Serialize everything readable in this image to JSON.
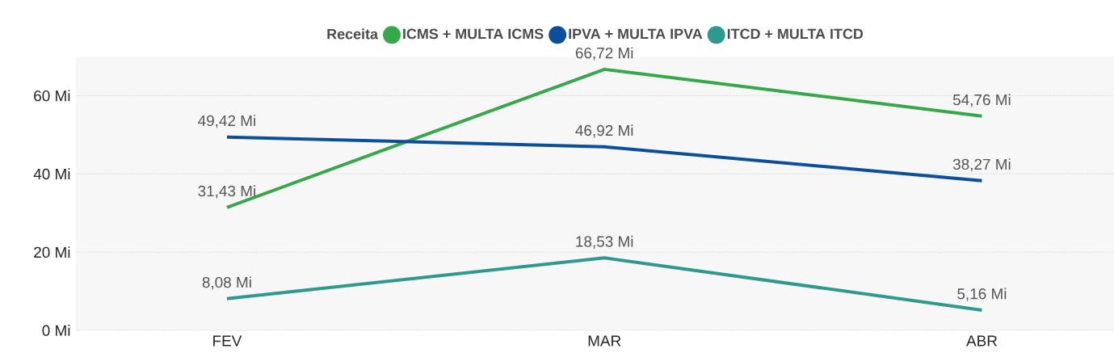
{
  "chart_data": {
    "type": "line",
    "legend_title": "Receita",
    "categories": [
      "FEV",
      "MAR",
      "ABR"
    ],
    "series": [
      {
        "name": "ICMS + MULTA ICMS",
        "color": "#37a84a",
        "values": [
          31.43,
          66.72,
          54.76
        ],
        "value_labels": [
          "31,43 Mi",
          "66,72 Mi",
          "54,76 Mi"
        ]
      },
      {
        "name": "IPVA + MULTA IPVA",
        "color": "#0b4f9c",
        "values": [
          49.42,
          46.92,
          38.27
        ],
        "value_labels": [
          "49,42 Mi",
          "46,92 Mi",
          "38,27 Mi"
        ]
      },
      {
        "name": "ITCD + MULTA ITCD",
        "color": "#2e9a8e",
        "values": [
          8.08,
          18.53,
          5.16
        ],
        "value_labels": [
          "8,08 Mi",
          "18,53 Mi",
          "5,16 Mi"
        ]
      }
    ],
    "ylim": [
      0,
      70
    ],
    "yticks": [
      {
        "value": 0,
        "label": "0 Mi"
      },
      {
        "value": 20,
        "label": "20 Mi"
      },
      {
        "value": 40,
        "label": "40 Mi"
      },
      {
        "value": 60,
        "label": "60 Mi"
      }
    ],
    "grid": "y",
    "legend": "top"
  }
}
